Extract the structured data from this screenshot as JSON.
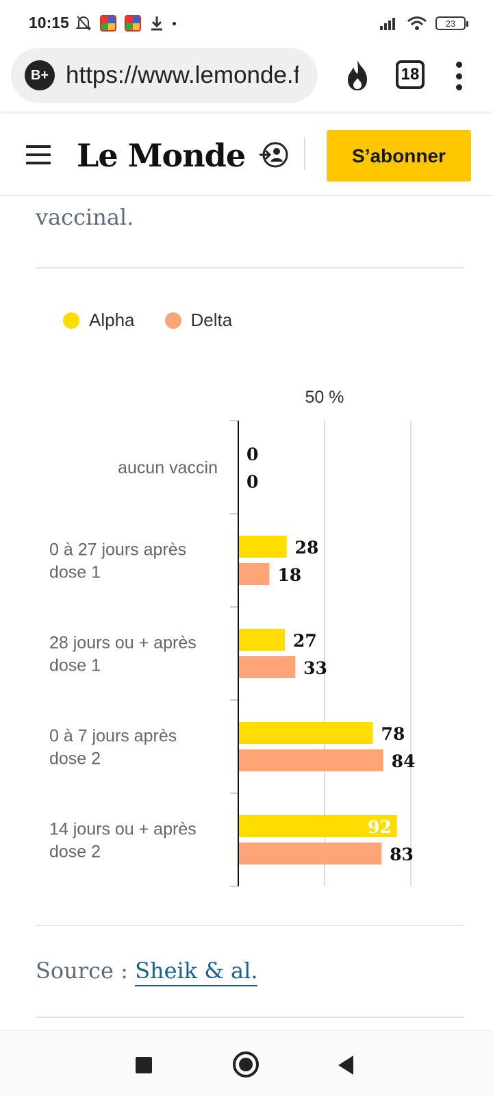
{
  "status_bar": {
    "time": "10:15",
    "battery": "23",
    "icons": [
      "mute-bell-icon",
      "app-icon",
      "app-icon",
      "download-icon",
      "signal-icon",
      "wifi-icon",
      "battery-icon"
    ]
  },
  "browser": {
    "url": "https://www.lemonde.fr",
    "badge": "B+",
    "tab_count": "18"
  },
  "header": {
    "logo": "Le Monde",
    "subscribe_label": "S’abonner",
    "subscribe_color": "#ffc700"
  },
  "article": {
    "lead_text": "vaccinal.",
    "source_prefix": "Source : ",
    "source_link": "Sheik & al."
  },
  "legend": [
    {
      "name": "Alpha",
      "color": "#ffdd00"
    },
    {
      "name": "Delta",
      "color": "#ffa477"
    }
  ],
  "chart_data": {
    "type": "bar",
    "orientation": "horizontal",
    "categories": [
      "aucun vaccin",
      "0 à 27 jours après dose 1",
      "28 jours ou + après dose 1",
      "0 à 7 jours après dose 2",
      "14 jours ou + après dose 2"
    ],
    "category_lines": [
      [
        "aucun vaccin"
      ],
      [
        "0 à 27 jours après",
        "dose 1"
      ],
      [
        "28 jours ou + après",
        "dose 1"
      ],
      [
        "0 à 7 jours après",
        "dose 2"
      ],
      [
        "14 jours ou + après",
        "dose 2"
      ]
    ],
    "series": [
      {
        "name": "Alpha",
        "color": "#ffdd00",
        "values": [
          0,
          28,
          27,
          78,
          92
        ]
      },
      {
        "name": "Delta",
        "color": "#ffa477",
        "values": [
          0,
          18,
          33,
          84,
          83
        ]
      }
    ],
    "axis_tick_label": "50 %",
    "xlim": [
      0,
      100
    ],
    "gridlines": [
      50,
      100
    ]
  }
}
